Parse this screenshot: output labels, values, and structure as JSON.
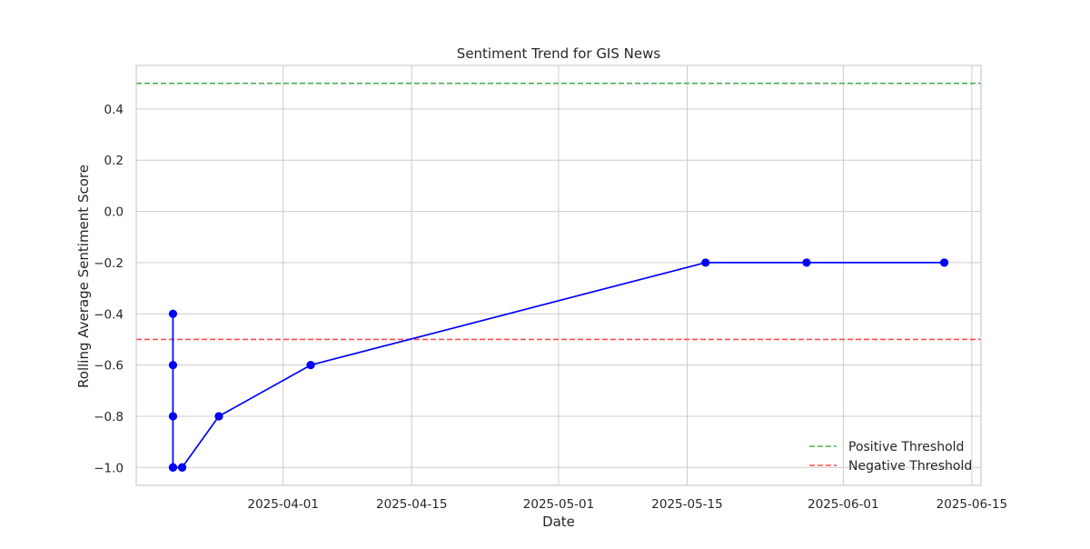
{
  "chart_data": {
    "type": "line",
    "title": "Sentiment Trend for GIS News",
    "xlabel": "Date",
    "ylabel": "Rolling Average Sentiment Score",
    "xlim": [
      "2025-03-16",
      "2025-06-16"
    ],
    "ylim": [
      -1.07,
      0.57
    ],
    "x_ticks": [
      "2025-04-01",
      "2025-04-15",
      "2025-05-01",
      "2025-05-15",
      "2025-06-01",
      "2025-06-15"
    ],
    "y_ticks": [
      -1.0,
      -0.8,
      -0.6,
      -0.4,
      -0.2,
      0.0,
      0.2,
      0.4
    ],
    "y_tick_labels": [
      "−1.0",
      "−0.8",
      "−0.6",
      "−0.4",
      "−0.2",
      "0.0",
      "0.2",
      "0.4"
    ],
    "grid": true,
    "legend_position": "lower-right",
    "series": [
      {
        "color": "#0000ff",
        "marker": "circle",
        "points": [
          {
            "x": "2025-03-20",
            "y": -0.4
          },
          {
            "x": "2025-03-20",
            "y": -0.6
          },
          {
            "x": "2025-03-20",
            "y": -0.8
          },
          {
            "x": "2025-03-20",
            "y": -1.0
          },
          {
            "x": "2025-03-20",
            "y": -1.0
          },
          {
            "x": "2025-03-21",
            "y": -1.0
          },
          {
            "x": "2025-03-21",
            "y": -1.0
          },
          {
            "x": "2025-03-25",
            "y": -0.8
          },
          {
            "x": "2025-04-04",
            "y": -0.6
          },
          {
            "x": "2025-05-17",
            "y": -0.2
          },
          {
            "x": "2025-05-28",
            "y": -0.2
          },
          {
            "x": "2025-06-12",
            "y": -0.2
          },
          {
            "x": "2025-06-12",
            "y": -0.2
          }
        ]
      }
    ],
    "reference_lines": [
      {
        "name": "Positive Threshold",
        "y": 0.5,
        "color": "#4caf50",
        "style": "dashed"
      },
      {
        "name": "Negative Threshold",
        "y": -0.5,
        "color": "#ff4d4d",
        "style": "dashed"
      }
    ]
  }
}
